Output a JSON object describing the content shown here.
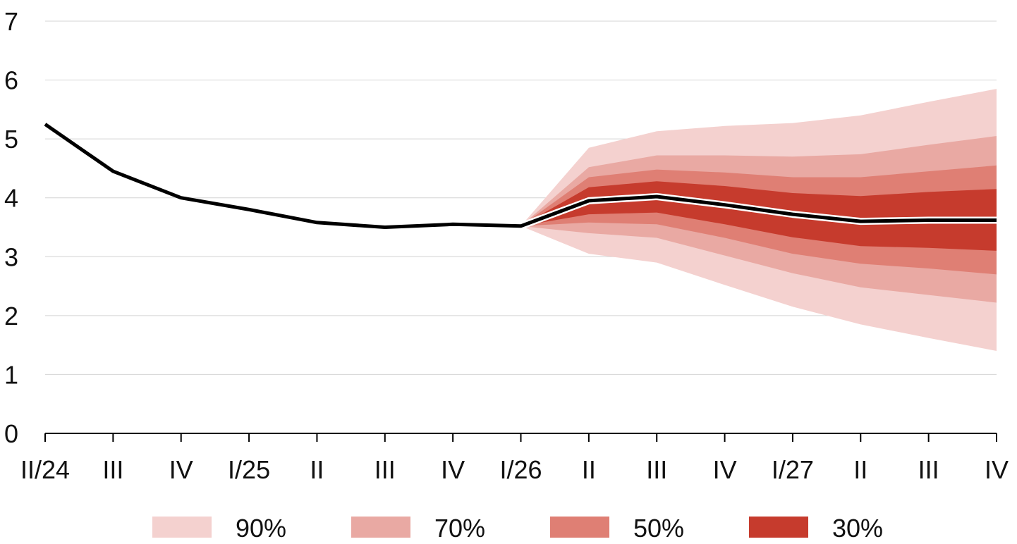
{
  "chart_data": {
    "type": "area",
    "title": "",
    "xlabel": "",
    "ylabel": "",
    "categories": [
      "II/24",
      "III",
      "IV",
      "I/25",
      "II",
      "III",
      "IV",
      "I/26",
      "II",
      "III",
      "IV",
      "I/27",
      "II",
      "III",
      "IV"
    ],
    "ylim": [
      0,
      7
    ],
    "yticks": [
      "0",
      "1",
      "2",
      "3",
      "4",
      "5",
      "6",
      "7"
    ],
    "grid": true,
    "legend_position": "bottom",
    "forecast_start_index": 7,
    "series": [
      {
        "values": [
          5.25,
          4.45,
          4.0,
          3.8,
          3.58,
          3.5,
          3.55,
          3.52,
          3.95,
          4.02,
          3.88,
          3.72,
          3.6,
          3.62,
          3.62
        ]
      }
    ],
    "bands": [
      {
        "name": "90%",
        "color": "#f4d1cf",
        "lower": [
          3.52,
          3.05,
          2.9,
          2.52,
          2.15,
          1.85,
          1.62,
          1.4
        ],
        "upper": [
          3.52,
          4.85,
          5.13,
          5.22,
          5.27,
          5.4,
          5.63,
          5.85
        ]
      },
      {
        "name": "70%",
        "color": "#e9a9a3",
        "lower": [
          3.52,
          3.4,
          3.32,
          3.02,
          2.72,
          2.48,
          2.35,
          2.22
        ],
        "upper": [
          3.52,
          4.52,
          4.72,
          4.72,
          4.7,
          4.74,
          4.9,
          5.05
        ]
      },
      {
        "name": "50%",
        "color": "#df7f74",
        "lower": [
          3.52,
          3.58,
          3.55,
          3.32,
          3.05,
          2.88,
          2.8,
          2.7
        ],
        "upper": [
          3.52,
          4.35,
          4.48,
          4.43,
          4.35,
          4.35,
          4.45,
          4.55
        ]
      },
      {
        "name": "30%",
        "color": "#c63b2d",
        "lower": [
          3.52,
          3.72,
          3.75,
          3.55,
          3.33,
          3.18,
          3.15,
          3.1
        ],
        "upper": [
          3.52,
          4.18,
          4.28,
          4.2,
          4.08,
          4.03,
          4.1,
          4.15
        ]
      }
    ],
    "line_color": "#000000"
  }
}
